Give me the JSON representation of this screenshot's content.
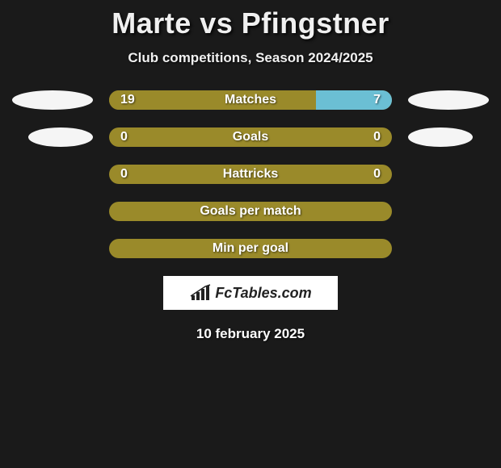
{
  "title": "Marte vs Pfingstner",
  "subtitle": "Club competitions, Season 2024/2025",
  "colors": {
    "left_bar": "#9a8a2a",
    "right_bar": "#6bbfd4",
    "background": "#1a1a1a",
    "text": "#ffffff",
    "avatar_bg": "#f5f5f5"
  },
  "stats": [
    {
      "label": "Matches",
      "left_value": "19",
      "right_value": "7",
      "left_pct": 73,
      "right_pct": 27,
      "show_avatars": true
    },
    {
      "label": "Goals",
      "left_value": "0",
      "right_value": "0",
      "left_pct": 100,
      "right_pct": 0,
      "show_avatars": true
    },
    {
      "label": "Hattricks",
      "left_value": "0",
      "right_value": "0",
      "left_pct": 100,
      "right_pct": 0,
      "show_avatars": false
    },
    {
      "label": "Goals per match",
      "left_value": "",
      "right_value": "",
      "left_pct": 100,
      "right_pct": 0,
      "show_avatars": false
    },
    {
      "label": "Min per goal",
      "left_value": "",
      "right_value": "",
      "left_pct": 100,
      "right_pct": 0,
      "show_avatars": false
    }
  ],
  "logo_text": "FcTables.com",
  "date": "10 february 2025"
}
